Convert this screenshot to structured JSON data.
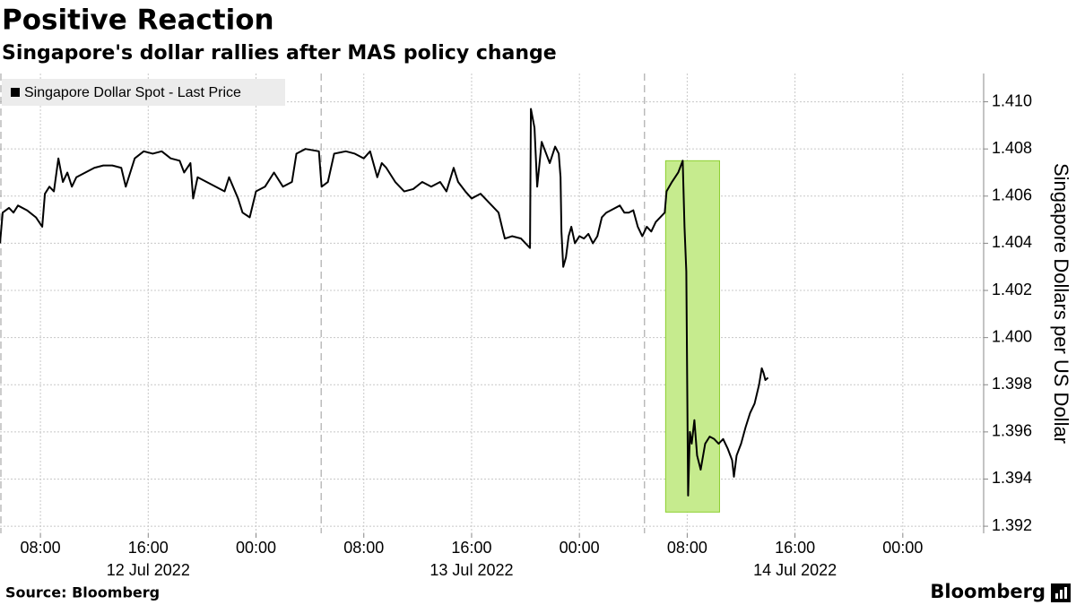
{
  "chart_data": {
    "type": "line",
    "title": "Positive Reaction",
    "subtitle": "Singapore's dollar rallies after MAS policy change",
    "y_label": "Singapore Dollars per US Dollar",
    "source": "Source: Bloomberg",
    "brand": "Bloomberg",
    "legend": "top-left",
    "grid": true,
    "xlim": [
      "2022-07-12 05:00",
      "2022-07-15 06:00"
    ],
    "ylim": [
      1.3917,
      1.4112
    ],
    "yticks": [
      1.392,
      1.394,
      1.396,
      1.398,
      {
        "value": 1.4,
        "label": "1.400"
      },
      1.402,
      1.404,
      1.406,
      1.408,
      {
        "value": 1.41,
        "label": "1.410"
      }
    ],
    "xticks": [
      {
        "value": "2022-07-12 08:00",
        "label": "08:00"
      },
      {
        "value": "2022-07-12 16:00",
        "label": "16:00"
      },
      {
        "value": "2022-07-13 00:00",
        "label": "00:00"
      },
      {
        "value": "2022-07-13 08:00",
        "label": "08:00"
      },
      {
        "value": "2022-07-13 16:00",
        "label": "16:00"
      },
      {
        "value": "2022-07-14 00:00",
        "label": "00:00"
      },
      {
        "value": "2022-07-14 08:00",
        "label": "08:00"
      },
      {
        "value": "2022-07-14 16:00",
        "label": "16:00"
      },
      {
        "value": "2022-07-15 00:00",
        "label": "00:00"
      }
    ],
    "date_labels": [
      {
        "value": "2022-07-12 16:00",
        "label": "12 Jul 2022"
      },
      {
        "value": "2022-07-13 16:00",
        "label": "13 Jul 2022"
      },
      {
        "value": "2022-07-14 16:00",
        "label": "14 Jul 2022"
      }
    ],
    "session_breaks": [
      "2022-07-12 05:00",
      "2022-07-13 04:50",
      "2022-07-14 04:50"
    ],
    "highlight": {
      "x": [
        "2022-07-14 06:24",
        "2022-07-14 10:24"
      ],
      "y": [
        1.3926,
        1.4075
      ],
      "color": "#c6eb8e",
      "border": "#8ccf2e"
    },
    "x": [
      "2022-07-12 05:00",
      "2022-07-12 05:12",
      "2022-07-12 05:40",
      "2022-07-12 06:00",
      "2022-07-12 06:20",
      "2022-07-12 07:00",
      "2022-07-12 07:40",
      "2022-07-12 08:08",
      "2022-07-12 08:20",
      "2022-07-12 08:40",
      "2022-07-12 09:00",
      "2022-07-12 09:20",
      "2022-07-12 09:40",
      "2022-07-12 10:00",
      "2022-07-12 10:20",
      "2022-07-12 10:40",
      "2022-07-12 11:20",
      "2022-07-12 12:00",
      "2022-07-12 12:40",
      "2022-07-12 13:20",
      "2022-07-12 14:00",
      "2022-07-12 14:20",
      "2022-07-12 14:40",
      "2022-07-12 15:00",
      "2022-07-12 15:40",
      "2022-07-12 16:20",
      "2022-07-12 17:00",
      "2022-07-12 17:40",
      "2022-07-12 18:20",
      "2022-07-12 18:40",
      "2022-07-12 19:08",
      "2022-07-12 19:20",
      "2022-07-12 19:40",
      "2022-07-12 20:20",
      "2022-07-12 21:00",
      "2022-07-12 21:40",
      "2022-07-12 22:00",
      "2022-07-12 22:40",
      "2022-07-12 23:00",
      "2022-07-12 23:32",
      "2022-07-13 00:00",
      "2022-07-13 00:40",
      "2022-07-13 01:20",
      "2022-07-13 02:00",
      "2022-07-13 02:40",
      "2022-07-13 03:00",
      "2022-07-13 03:40",
      "2022-07-13 04:40",
      "2022-07-13 04:52",
      "2022-07-13 05:20",
      "2022-07-13 05:48",
      "2022-07-13 06:40",
      "2022-07-13 07:20",
      "2022-07-13 08:00",
      "2022-07-13 08:28",
      "2022-07-13 09:00",
      "2022-07-13 09:20",
      "2022-07-13 09:40",
      "2022-07-13 10:20",
      "2022-07-13 11:00",
      "2022-07-13 11:40",
      "2022-07-13 12:20",
      "2022-07-13 13:00",
      "2022-07-13 13:40",
      "2022-07-13 14:08",
      "2022-07-13 14:40",
      "2022-07-13 15:00",
      "2022-07-13 15:32",
      "2022-07-13 16:00",
      "2022-07-13 16:40",
      "2022-07-13 17:20",
      "2022-07-13 18:00",
      "2022-07-13 18:20",
      "2022-07-13 18:28",
      "2022-07-13 19:00",
      "2022-07-13 19:40",
      "2022-07-13 20:00",
      "2022-07-13 20:20",
      "2022-07-13 20:24",
      "2022-07-13 20:40",
      "2022-07-13 20:52",
      "2022-07-13 21:12",
      "2022-07-13 21:32",
      "2022-07-13 21:48",
      "2022-07-13 22:12",
      "2022-07-13 22:28",
      "2022-07-13 22:36",
      "2022-07-13 22:40",
      "2022-07-13 22:48",
      "2022-07-13 23:00",
      "2022-07-13 23:12",
      "2022-07-13 23:24",
      "2022-07-13 23:40",
      "2022-07-14 00:00",
      "2022-07-14 00:20",
      "2022-07-14 00:40",
      "2022-07-14 01:00",
      "2022-07-14 01:20",
      "2022-07-14 01:40",
      "2022-07-14 02:00",
      "2022-07-14 02:20",
      "2022-07-14 03:00",
      "2022-07-14 03:20",
      "2022-07-14 03:40",
      "2022-07-14 04:00",
      "2022-07-14 04:20",
      "2022-07-14 04:40",
      "2022-07-14 05:00",
      "2022-07-14 05:20",
      "2022-07-14 05:40",
      "2022-07-14 06:00",
      "2022-07-14 06:20",
      "2022-07-14 06:28",
      "2022-07-14 06:52",
      "2022-07-14 07:20",
      "2022-07-14 07:40",
      "2022-07-14 07:48",
      "2022-07-14 07:56",
      "2022-07-14 08:04",
      "2022-07-14 08:12",
      "2022-07-14 08:20",
      "2022-07-14 08:32",
      "2022-07-14 08:44",
      "2022-07-14 09:00",
      "2022-07-14 09:20",
      "2022-07-14 09:40",
      "2022-07-14 10:00",
      "2022-07-14 10:20",
      "2022-07-14 10:40",
      "2022-07-14 11:00",
      "2022-07-14 11:20",
      "2022-07-14 11:28",
      "2022-07-14 11:40",
      "2022-07-14 12:00",
      "2022-07-14 12:20",
      "2022-07-14 12:40",
      "2022-07-14 13:00",
      "2022-07-14 13:20",
      "2022-07-14 13:32",
      "2022-07-14 13:40",
      "2022-07-14 13:48",
      "2022-07-14 14:00"
    ],
    "series": [
      {
        "name": "Singapore Dollar Spot - Last Price",
        "color": "#000000",
        "values": [
          1.404,
          1.4053,
          1.4055,
          1.4053,
          1.4056,
          1.4054,
          1.4051,
          1.4047,
          1.4061,
          1.4064,
          1.4062,
          1.4076,
          1.4066,
          1.407,
          1.4064,
          1.4068,
          1.407,
          1.4072,
          1.4073,
          1.4073,
          1.4072,
          1.4064,
          1.407,
          1.4076,
          1.4079,
          1.4078,
          1.4079,
          1.4076,
          1.4075,
          1.407,
          1.4074,
          1.4059,
          1.4068,
          1.4066,
          1.4064,
          1.4062,
          1.4068,
          1.4059,
          1.4053,
          1.4051,
          1.4062,
          1.4064,
          1.407,
          1.4064,
          1.4066,
          1.4078,
          1.408,
          1.4079,
          1.4064,
          1.4066,
          1.4078,
          1.4079,
          1.4078,
          1.4076,
          1.4079,
          1.4068,
          1.4074,
          1.4072,
          1.4066,
          1.4062,
          1.4063,
          1.4066,
          1.4064,
          1.4066,
          1.4062,
          1.4072,
          1.4066,
          1.4062,
          1.4059,
          1.4061,
          1.4057,
          1.4053,
          1.4045,
          1.4042,
          1.4043,
          1.4042,
          1.404,
          1.4038,
          1.4097,
          1.4089,
          1.4064,
          1.4083,
          1.4078,
          1.4074,
          1.4081,
          1.4078,
          1.4068,
          1.4045,
          1.403,
          1.4034,
          1.4043,
          1.4047,
          1.404,
          1.4043,
          1.4042,
          1.4044,
          1.404,
          1.4043,
          1.4051,
          1.4053,
          1.4054,
          1.4056,
          1.4053,
          1.4053,
          1.4054,
          1.4047,
          1.4043,
          1.4047,
          1.4045,
          1.4049,
          1.4051,
          1.4053,
          1.4062,
          1.4066,
          1.407,
          1.4075,
          1.4047,
          1.4028,
          1.3933,
          1.396,
          1.3955,
          1.3965,
          1.395,
          1.3944,
          1.3955,
          1.3958,
          1.3957,
          1.3955,
          1.3957,
          1.3953,
          1.3948,
          1.3941,
          1.395,
          1.3955,
          1.3962,
          1.3968,
          1.3972,
          1.398,
          1.3987,
          1.3985,
          1.3982,
          1.3983
        ]
      }
    ]
  }
}
